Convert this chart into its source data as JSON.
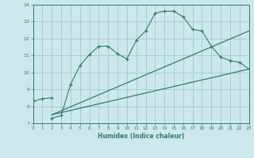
{
  "title": "",
  "xlabel": "Humidex (Indice chaleur)",
  "bg_color": "#cce8ec",
  "grid_color": "#a0c8d0",
  "line_color": "#2e7d6e",
  "xlim": [
    0,
    23
  ],
  "ylim": [
    7,
    14
  ],
  "xticks": [
    0,
    1,
    2,
    3,
    4,
    5,
    6,
    7,
    8,
    9,
    10,
    11,
    12,
    13,
    14,
    15,
    16,
    17,
    18,
    19,
    20,
    21,
    22,
    23
  ],
  "yticks": [
    7,
    8,
    9,
    10,
    11,
    12,
    13,
    14
  ],
  "lines": [
    {
      "x": [
        0,
        1,
        2
      ],
      "y": [
        8.3,
        8.45,
        8.5
      ],
      "marker": true
    },
    {
      "x": [
        2,
        3,
        4,
        5,
        6,
        7,
        8,
        9,
        10,
        11,
        12,
        13,
        14,
        15,
        16,
        17,
        18,
        19,
        20,
        21,
        22,
        23
      ],
      "y": [
        7.3,
        7.45,
        9.3,
        10.4,
        11.05,
        11.55,
        11.55,
        11.1,
        10.8,
        11.9,
        12.45,
        13.5,
        13.62,
        13.62,
        13.28,
        12.55,
        12.45,
        11.55,
        10.9,
        10.7,
        10.6,
        10.2
      ],
      "marker": true
    },
    {
      "x": [
        2,
        23
      ],
      "y": [
        7.5,
        10.2
      ],
      "marker": false
    },
    {
      "x": [
        2,
        23
      ],
      "y": [
        7.5,
        12.45
      ],
      "marker": false
    }
  ]
}
